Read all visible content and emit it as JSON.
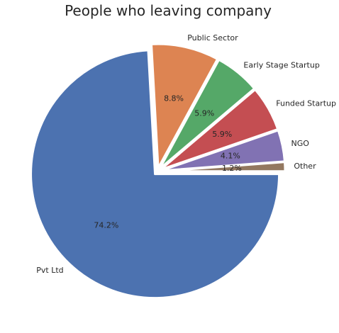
{
  "chart_data": {
    "type": "pie",
    "title": "People who leaving company",
    "categories": [
      "Pvt Ltd",
      "Public Sector",
      "Early Stage Startup",
      "Funded Startup",
      "NGO",
      "Other"
    ],
    "values": [
      74.2,
      8.8,
      5.9,
      5.9,
      4.1,
      1.2
    ],
    "value_labels": [
      "74.2%",
      "8.8%",
      "5.9%",
      "5.9%",
      "4.1%",
      "1.2%"
    ],
    "colors": [
      "#4c72b0",
      "#dd8452",
      "#55a868",
      "#c44e52",
      "#8172b3",
      "#937860"
    ],
    "start_angle_deg": 0,
    "direction": "clockwise",
    "exploded": true
  }
}
